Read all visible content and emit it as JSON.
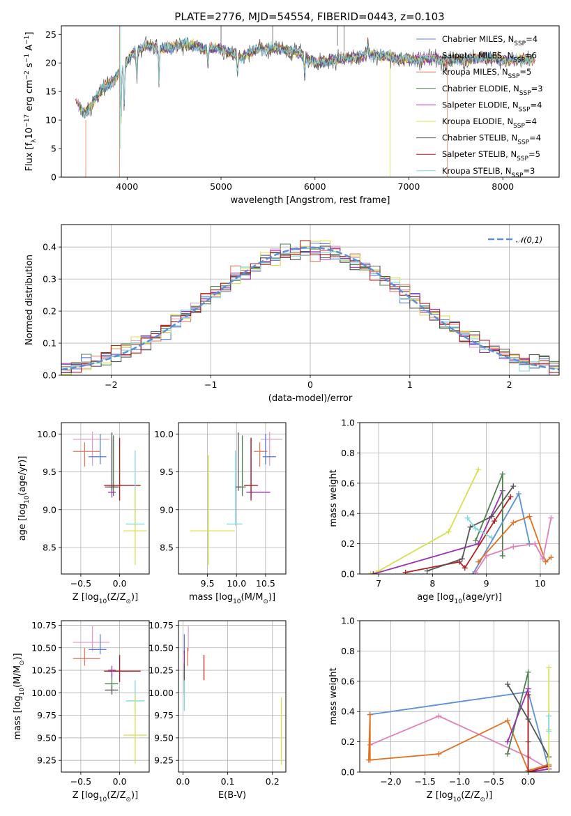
{
  "title": "PLATE=2776, MJD=54554, FIBERID=0443, z=0.103",
  "colors": {
    "chabrier_miles": "#5b7fd6",
    "salpeter_miles": "#e0a0c8",
    "kroupa_miles": "#e07a5f",
    "chabrier_elodie": "#4f7f4f",
    "salpeter_elodie": "#9b30b0",
    "kroupa_elodie": "#d8e050",
    "chabrier_stelib": "#555555",
    "salpeter_stelib": "#b02020",
    "kroupa_stelib": "#80d8e0",
    "normal": "#5b8fd6",
    "orange": "#e07020",
    "pink": "#e080b8"
  },
  "chart_data": [
    {
      "id": "spectrum",
      "type": "line",
      "xlabel": "wavelength [Angstrom, rest frame]",
      "ylabel": "Flux [f_λ10^-17 erg cm^-2 s^-1 A^-1]",
      "xlim": [
        3300,
        8600
      ],
      "ylim": [
        0,
        26.5
      ],
      "xticks": [
        4000,
        5000,
        6000,
        7000,
        8000
      ],
      "yticks": [
        0,
        5,
        10,
        15,
        20,
        25
      ],
      "legend_position": "upper-right",
      "legend": [
        {
          "label": "Chabrier MILES, N_SSP=4",
          "key": "chabrier_miles"
        },
        {
          "label": "Salpeter MILES, N_SSP=6",
          "key": "salpeter_miles"
        },
        {
          "label": "Kroupa MILES, N_SSP=5",
          "key": "kroupa_miles"
        },
        {
          "label": "Chabrier ELODIE, N_SSP=3",
          "key": "chabrier_elodie"
        },
        {
          "label": "Salpeter ELODIE, N_SSP=4",
          "key": "salpeter_elodie"
        },
        {
          "label": "Kroupa ELODIE, N_SSP=4",
          "key": "kroupa_elodie"
        },
        {
          "label": "Chabrier STELIB, N_SSP=4",
          "key": "chabrier_stelib"
        },
        {
          "label": "Salpeter STELIB, N_SSP=5",
          "key": "salpeter_stelib"
        },
        {
          "label": "Kroupa STELIB, N_SSP=3",
          "key": "kroupa_stelib"
        }
      ],
      "continuum": [
        [
          3450,
          13.5
        ],
        [
          3550,
          11
        ],
        [
          3650,
          13.5
        ],
        [
          3750,
          15.5
        ],
        [
          3850,
          17
        ],
        [
          3950,
          19
        ],
        [
          4050,
          21.5
        ],
        [
          4200,
          23
        ],
        [
          4400,
          22.5
        ],
        [
          4600,
          23.5
        ],
        [
          4800,
          22.5
        ],
        [
          5000,
          22.5
        ],
        [
          5200,
          21
        ],
        [
          5400,
          22.5
        ],
        [
          5600,
          22.5
        ],
        [
          5800,
          22
        ],
        [
          6000,
          20
        ],
        [
          6200,
          20.5
        ],
        [
          6400,
          21
        ],
        [
          6600,
          21.5
        ],
        [
          6800,
          21
        ],
        [
          7000,
          20.5
        ],
        [
          7200,
          20.8
        ],
        [
          7400,
          20.5
        ],
        [
          7600,
          20.5
        ],
        [
          7800,
          21
        ],
        [
          8000,
          20.5
        ],
        [
          8200,
          20.5
        ],
        [
          8350,
          20.5
        ]
      ]
    },
    {
      "id": "residuals",
      "type": "line",
      "xlabel": "(data-model)/error",
      "ylabel": "Normed distribution",
      "xlim": [
        -2.5,
        2.5
      ],
      "ylim": [
        0,
        0.47
      ],
      "xticks": [
        -2,
        -1,
        0,
        1,
        2
      ],
      "yticks": [
        0.0,
        0.1,
        0.2,
        0.3,
        0.4
      ],
      "legend_position": "upper-right",
      "legend": [
        {
          "label": "N(0,1)"
        }
      ]
    },
    {
      "id": "age_vs_Z",
      "type": "scatter",
      "xlabel": "Z [log10(Z/Z⊙)]",
      "ylabel": "age [log10(age/yr)]",
      "xlim": [
        -0.75,
        0.38
      ],
      "ylim": [
        8.15,
        10.15
      ],
      "xticks": [
        -0.5,
        0.0
      ],
      "yticks": [
        8.5,
        9.0,
        9.5,
        10.0
      ],
      "points": [
        {
          "key": "salpeter_miles",
          "x": -0.35,
          "xerr": [
            0.25,
            0.22
          ],
          "y": 9.93,
          "yerr": [
            0.35,
            0.1
          ]
        },
        {
          "key": "kroupa_miles",
          "x": -0.45,
          "xerr": [
            0.15,
            0.2
          ],
          "y": 9.77,
          "yerr": [
            0.2,
            0.12
          ]
        },
        {
          "key": "chabrier_miles",
          "x": -0.25,
          "xerr": [
            0.15,
            0.08
          ],
          "y": 9.7,
          "yerr": [
            0.1,
            0.3
          ]
        },
        {
          "key": "chabrier_elodie",
          "x": -0.08,
          "xerr": [
            0.07,
            0.07
          ],
          "y": 9.3,
          "yerr": [
            0.12,
            0.68
          ]
        },
        {
          "key": "salpeter_elodie",
          "x": -0.1,
          "xerr": [
            0.05,
            0.05
          ],
          "y": 9.23,
          "yerr": [
            0.07,
            0.72
          ]
        },
        {
          "key": "chabrier_stelib",
          "x": -0.1,
          "xerr": [
            0.09,
            0.08
          ],
          "y": 9.3,
          "yerr": [
            0.05,
            0.72
          ]
        },
        {
          "key": "salpeter_stelib",
          "x": 0.0,
          "xerr": [
            0.2,
            0.27
          ],
          "y": 9.32,
          "yerr": [
            0.2,
            0.63
          ]
        },
        {
          "key": "kroupa_stelib",
          "x": 0.2,
          "xerr": [
            0.12,
            0.12
          ],
          "y": 8.81,
          "yerr": [
            0.02,
            0.97
          ]
        },
        {
          "key": "kroupa_elodie",
          "x": 0.2,
          "xerr": [
            0.15,
            0.15
          ],
          "y": 8.72,
          "yerr": [
            0.45,
            0.55
          ]
        }
      ]
    },
    {
      "id": "age_vs_mass",
      "type": "scatter",
      "xlabel": "mass [log10(M/M⊙)]",
      "ylabel": "",
      "xlim": [
        9.0,
        10.85
      ],
      "ylim": [
        8.15,
        10.15
      ],
      "xticks": [
        9.5,
        10.0,
        10.5
      ],
      "yticks": [
        8.5,
        9.0,
        9.5,
        10.0
      ],
      "points": [
        {
          "key": "salpeter_miles",
          "x": 10.57,
          "xerr": [
            0.15,
            0.22
          ],
          "y": 9.93,
          "yerr": [
            0.35,
            0.1
          ]
        },
        {
          "key": "kroupa_miles",
          "x": 10.4,
          "xerr": [
            0.1,
            0.13
          ],
          "y": 9.77,
          "yerr": [
            0.2,
            0.12
          ]
        },
        {
          "key": "chabrier_miles",
          "x": 10.5,
          "xerr": [
            0.05,
            0.18
          ],
          "y": 9.7,
          "yerr": [
            0.1,
            0.3
          ]
        },
        {
          "key": "chabrier_elodie",
          "x": 10.1,
          "xerr": [
            0.08,
            0.06
          ],
          "y": 9.3,
          "yerr": [
            0.12,
            0.68
          ]
        },
        {
          "key": "salpeter_elodie",
          "x": 10.25,
          "xerr": [
            0.08,
            0.33
          ],
          "y": 9.23,
          "yerr": [
            0.07,
            0.72
          ]
        },
        {
          "key": "chabrier_stelib",
          "x": 10.03,
          "xerr": [
            0.05,
            0.05
          ],
          "y": 9.3,
          "yerr": [
            0.05,
            0.72
          ]
        },
        {
          "key": "salpeter_stelib",
          "x": 10.25,
          "xerr": [
            0.12,
            0.12
          ],
          "y": 9.32,
          "yerr": [
            0.2,
            0.63
          ]
        },
        {
          "key": "kroupa_stelib",
          "x": 9.98,
          "xerr": [
            0.15,
            0.12
          ],
          "y": 8.81,
          "yerr": [
            0.02,
            0.97
          ]
        },
        {
          "key": "kroupa_elodie",
          "x": 9.52,
          "xerr": [
            0.32,
            0.45
          ],
          "y": 8.72,
          "yerr": [
            0.45,
            1.0
          ]
        }
      ]
    },
    {
      "id": "mass_weight_vs_age",
      "type": "line",
      "xlabel": "age [log10(age/yr)]",
      "ylabel": "mass weight",
      "xlim": [
        6.65,
        10.35
      ],
      "ylim": [
        0,
        1.0
      ],
      "xticks": [
        7,
        8,
        9,
        10
      ],
      "yticks": [
        0.0,
        0.2,
        0.4,
        0.6,
        0.8,
        1.0
      ],
      "series": [
        {
          "key": "kroupa_elodie",
          "x": [
            6.85,
            7.0,
            8.3,
            8.85
          ],
          "y": [
            0.0,
            0.02,
            0.28,
            0.69
          ]
        },
        {
          "key": "salpeter_elodie",
          "x": [
            6.9,
            8.85,
            9.3
          ],
          "y": [
            0.0,
            0.2,
            0.55
          ]
        },
        {
          "key": "salpeter_stelib",
          "x": [
            7.5,
            8.5,
            8.6,
            9.15,
            9.45
          ],
          "y": [
            0.01,
            0.08,
            0.04,
            0.35,
            0.51
          ]
        },
        {
          "key": "chabrier_stelib",
          "x": [
            7.9,
            8.55,
            8.7,
            9.1,
            9.5
          ],
          "y": [
            0.02,
            0.1,
            0.31,
            0.38,
            0.58
          ]
        },
        {
          "key": "chabrier_elodie",
          "x": [
            8.8,
            9.3,
            9.3
          ],
          "y": [
            0.22,
            0.66,
            0.12
          ]
        },
        {
          "key": "kroupa_stelib",
          "x": [
            8.65,
            8.8,
            9.1
          ],
          "y": [
            0.37,
            0.3,
            0.24
          ]
        },
        {
          "key": "normal",
          "x": [
            8.75,
            9.6,
            9.8
          ],
          "y": [
            0.0,
            0.53,
            0.2
          ]
        },
        {
          "key": "orange",
          "x": [
            8.85,
            9.5,
            9.8,
            10.1,
            10.2
          ],
          "y": [
            0.08,
            0.34,
            0.38,
            0.08,
            0.11
          ]
        },
        {
          "key": "pink",
          "x": [
            8.8,
            9.0,
            9.5,
            9.9,
            10.05,
            10.2
          ],
          "y": [
            0.01,
            0.12,
            0.18,
            0.2,
            0.1,
            0.37
          ]
        }
      ]
    },
    {
      "id": "mass_vs_Z",
      "type": "scatter",
      "xlabel": "Z [log10(Z/Z⊙)]",
      "ylabel": "mass [log10(M/M⊙)]",
      "xlim": [
        -0.75,
        0.38
      ],
      "ylim": [
        9.12,
        10.8
      ],
      "xticks": [
        -0.5,
        0.0
      ],
      "yticks": [
        9.25,
        9.5,
        9.75,
        10.0,
        10.25,
        10.5,
        10.75
      ],
      "points": [
        {
          "key": "salpeter_miles",
          "x": -0.35,
          "xerr": [
            0.25,
            0.22
          ],
          "y": 10.56,
          "yerr": [
            0.1,
            0.18
          ]
        },
        {
          "key": "kroupa_miles",
          "x": -0.45,
          "xerr": [
            0.15,
            0.2
          ],
          "y": 10.38,
          "yerr": [
            0.08,
            0.12
          ]
        },
        {
          "key": "chabrier_miles",
          "x": -0.25,
          "xerr": [
            0.15,
            0.08
          ],
          "y": 10.48,
          "yerr": [
            0.05,
            0.17
          ]
        },
        {
          "key": "chabrier_elodie",
          "x": -0.1,
          "xerr": [
            0.09,
            0.08
          ],
          "y": 10.1,
          "yerr": [
            0.08,
            0.12
          ]
        },
        {
          "key": "salpeter_elodie",
          "x": -0.1,
          "xerr": [
            0.05,
            0.05
          ],
          "y": 10.25,
          "yerr": [
            0.08,
            0.05
          ]
        },
        {
          "key": "chabrier_stelib",
          "x": -0.1,
          "xerr": [
            0.09,
            0.08
          ],
          "y": 10.03,
          "yerr": [
            0.05,
            0.05
          ]
        },
        {
          "key": "salpeter_stelib",
          "x": 0.0,
          "xerr": [
            0.2,
            0.27
          ],
          "y": 10.24,
          "yerr": [
            0.12,
            0.18
          ]
        },
        {
          "key": "kroupa_stelib",
          "x": 0.2,
          "xerr": [
            0.12,
            0.12
          ],
          "y": 9.91,
          "yerr": [
            0.11,
            0.23
          ]
        },
        {
          "key": "kroupa_elodie",
          "x": 0.2,
          "xerr": [
            0.15,
            0.15
          ],
          "y": 9.53,
          "yerr": [
            0.32,
            0.45
          ]
        }
      ]
    },
    {
      "id": "mass_vs_ebv",
      "type": "scatter",
      "xlabel": "E(B-V)",
      "ylabel": "",
      "xlim": [
        -0.01,
        0.23
      ],
      "ylim": [
        9.12,
        10.8
      ],
      "xticks": [
        0.0,
        0.1,
        0.2
      ],
      "yticks": [
        9.25,
        9.5,
        9.75,
        10.0,
        10.25,
        10.5,
        10.75
      ],
      "points": [
        {
          "key": "salpeter_miles",
          "x": 0.012,
          "y": 10.56,
          "yerr": [
            0.1,
            0.18
          ]
        },
        {
          "key": "kroupa_miles",
          "x": 0.01,
          "y": 10.38,
          "yerr": [
            0.08,
            0.12
          ]
        },
        {
          "key": "chabrier_miles",
          "x": 0.003,
          "y": 10.48,
          "yerr": [
            0.05,
            0.17
          ]
        },
        {
          "key": "chabrier_elodie",
          "x": 0.003,
          "y": 10.1,
          "yerr": [
            0.08,
            0.12
          ]
        },
        {
          "key": "salpeter_elodie",
          "x": 0.003,
          "y": 10.25,
          "yerr": [
            0.08,
            0.22
          ]
        },
        {
          "key": "chabrier_stelib",
          "x": 0.003,
          "y": 10.03,
          "yerr": [
            0.05,
            0.3
          ]
        },
        {
          "key": "salpeter_stelib",
          "x": 0.047,
          "y": 10.28,
          "yerr": [
            0.14,
            0.14
          ]
        },
        {
          "key": "kroupa_stelib",
          "x": 0.003,
          "y": 9.91,
          "yerr": [
            0.11,
            0.23
          ]
        },
        {
          "key": "kroupa_elodie",
          "x": 0.22,
          "y": 9.55,
          "yerr": [
            0.35,
            0.4
          ]
        }
      ]
    },
    {
      "id": "mass_weight_vs_Z",
      "type": "line",
      "xlabel": "Z [log10(Z/Z⊙)]",
      "ylabel": "mass weight",
      "xlim": [
        -2.45,
        0.45
      ],
      "ylim": [
        0,
        1.0
      ],
      "xticks": [
        -2.0,
        -1.5,
        -1.0,
        -0.5,
        0.0
      ],
      "yticks": [
        0.0,
        0.2,
        0.4,
        0.6,
        0.8,
        1.0
      ],
      "series": [
        {
          "key": "normal",
          "x": [
            -2.3,
            0.0,
            0.3
          ],
          "y": [
            0.38,
            0.53,
            0.02
          ]
        },
        {
          "key": "pink",
          "x": [
            -2.3,
            -1.3,
            0.0,
            0.3
          ],
          "y": [
            0.18,
            0.37,
            0.1,
            0.02
          ]
        },
        {
          "key": "orange",
          "x": [
            -2.32,
            -2.3,
            -2.3,
            -1.3,
            -0.3,
            0.0,
            0.3
          ],
          "y": [
            0.08,
            0.38,
            0.08,
            0.12,
            0.34,
            0.01,
            0.05
          ]
        },
        {
          "key": "chabrier_elodie",
          "x": [
            -0.3,
            0.0,
            0.0
          ],
          "y": [
            0.12,
            0.66,
            0.2
          ]
        },
        {
          "key": "salpeter_elodie",
          "x": [
            -0.3,
            0.0,
            0.0,
            0.3
          ],
          "y": [
            0.2,
            0.55,
            0.0,
            0.02
          ]
        },
        {
          "key": "salpeter_stelib",
          "x": [
            0.0,
            0.0,
            0.3
          ],
          "y": [
            0.51,
            0.0,
            0.04
          ]
        },
        {
          "key": "chabrier_stelib",
          "x": [
            -0.3,
            0.0,
            0.3
          ],
          "y": [
            0.58,
            0.35,
            0.1
          ]
        },
        {
          "key": "kroupa_elodie",
          "x": [
            0.3,
            0.3,
            0.3
          ],
          "y": [
            0.69,
            0.28,
            0.0
          ]
        },
        {
          "key": "kroupa_stelib",
          "x": [
            0.3,
            0.3
          ],
          "y": [
            0.37,
            0.27
          ]
        }
      ]
    }
  ]
}
